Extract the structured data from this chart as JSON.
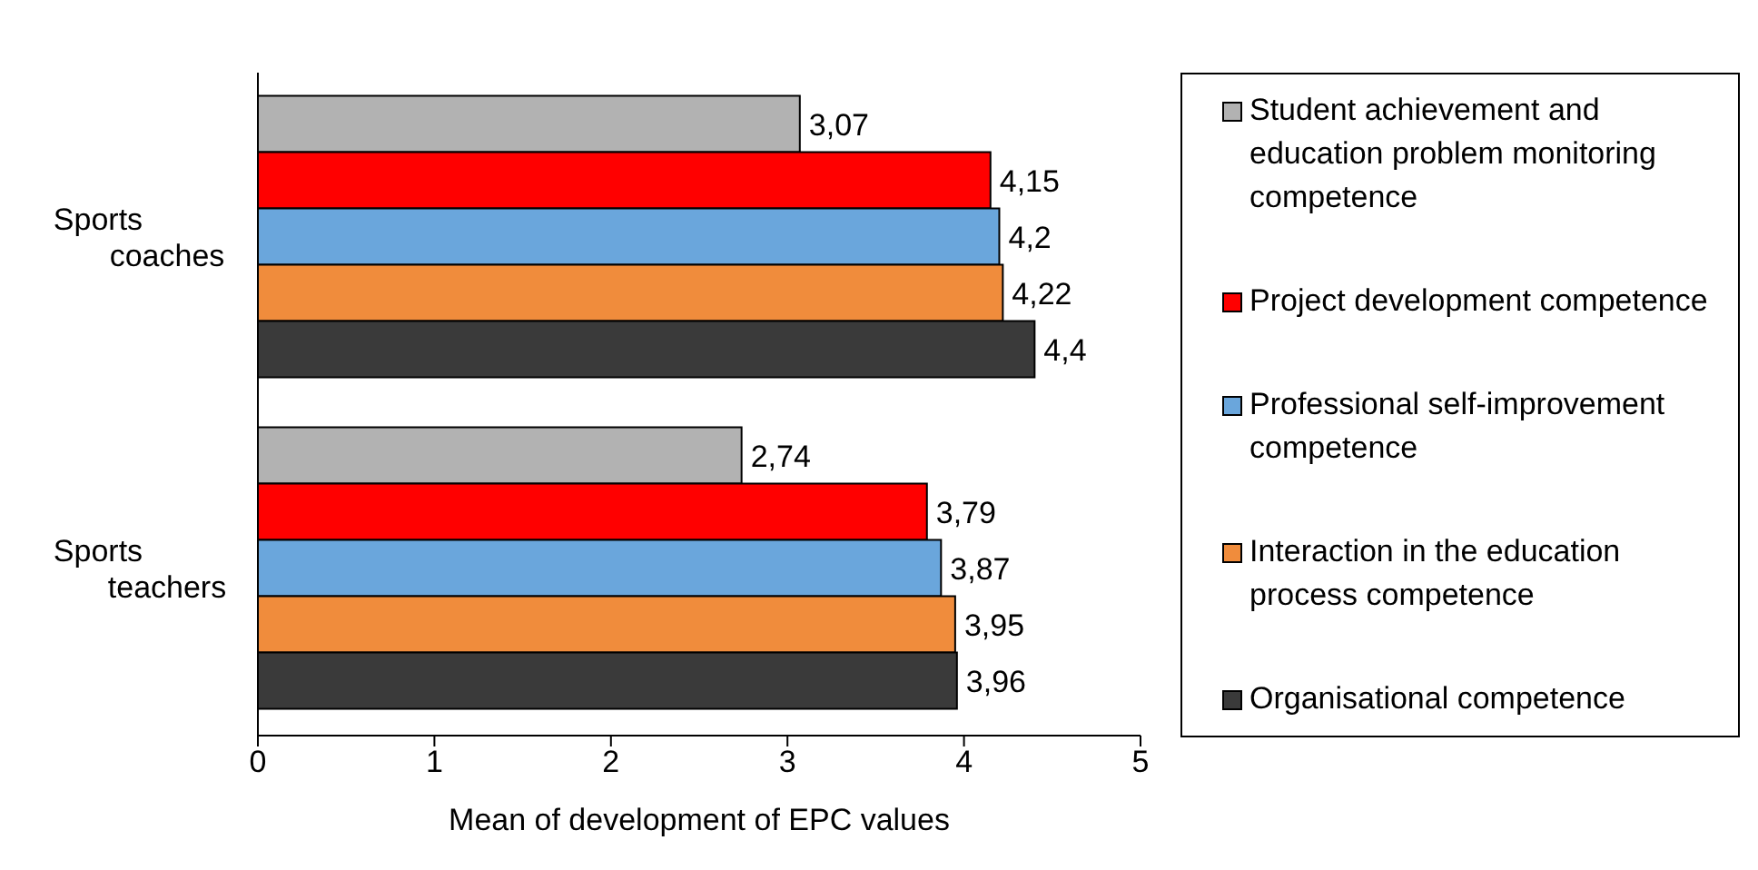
{
  "chart_data": {
    "type": "bar",
    "orientation": "horizontal",
    "xlabel": "Mean of development of EPC values",
    "categories": [
      "Sports coaches",
      "Sports teachers"
    ],
    "series": [
      {
        "name": "Student achievement and education problem monitoring competence",
        "color": "#b2b2b2",
        "values": [
          3.07,
          2.74
        ],
        "value_labels": [
          "3,07",
          "2,74"
        ]
      },
      {
        "name": "Project development competence",
        "color": "#ff0000",
        "values": [
          4.15,
          3.79
        ],
        "value_labels": [
          "4,15",
          "3,79"
        ]
      },
      {
        "name": "Professional self-improvement competence",
        "color": "#6aa6dc",
        "values": [
          4.2,
          3.87
        ],
        "value_labels": [
          "4,2",
          "3,87"
        ]
      },
      {
        "name": "Interaction in the education process competence",
        "color": "#f08c3c",
        "values": [
          4.22,
          3.95
        ],
        "value_labels": [
          "4,22",
          "3,95"
        ]
      },
      {
        "name": "Organisational competence",
        "color": "#3a3a3a",
        "values": [
          4.4,
          3.96
        ],
        "value_labels": [
          "4,4",
          "3,96"
        ]
      }
    ],
    "xlim": [
      0,
      5
    ],
    "xticks": [
      0,
      1,
      2,
      3,
      4,
      5
    ],
    "grid": false,
    "legend": "right"
  }
}
